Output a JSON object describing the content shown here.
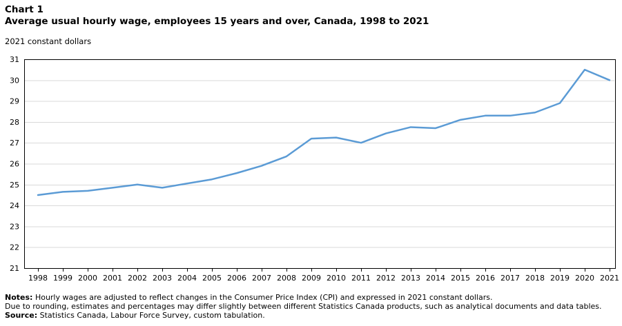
{
  "header": {
    "chart_label": "Chart 1",
    "title": "Average usual hourly wage, employees 15 years and over, Canada, 1998 to 2021",
    "units_label": "2021 constant dollars"
  },
  "chart_data": {
    "type": "line",
    "title": "Average usual hourly wage, employees 15 years and over, Canada, 1998 to 2021",
    "xlabel": "",
    "ylabel": "2021 constant dollars",
    "x": [
      1998,
      1999,
      2000,
      2001,
      2002,
      2003,
      2004,
      2005,
      2006,
      2007,
      2008,
      2009,
      2010,
      2011,
      2012,
      2013,
      2014,
      2015,
      2016,
      2017,
      2018,
      2019,
      2020,
      2021
    ],
    "series": [
      {
        "name": "Average usual hourly wage (2021 constant dollars)",
        "values": [
          24.5,
          24.65,
          24.7,
          24.85,
          25.0,
          24.85,
          25.05,
          25.25,
          25.55,
          25.9,
          26.35,
          27.2,
          27.25,
          27.0,
          27.45,
          27.75,
          27.7,
          28.1,
          28.3,
          28.3,
          28.45,
          28.9,
          30.5,
          30.0
        ]
      }
    ],
    "ylim": [
      21,
      31
    ],
    "ytick_step": 1,
    "grid": "horizontal",
    "legend": "none",
    "line_color": "#5B9BD5",
    "gridline_color": "#D9D9D9",
    "axis_color": "#000000"
  },
  "notes": {
    "notes_label": "Notes:",
    "note1": "Hourly wages are adjusted to reflect changes in the Consumer Price Index (CPI) and expressed in 2021 constant dollars.",
    "note2": "Due to rounding, estimates and percentages may differ slightly between different Statistics Canada products, such as analytical documents and data tables.",
    "source_label": "Source:",
    "source_text": "Statistics Canada, Labour Force Survey, custom tabulation."
  }
}
